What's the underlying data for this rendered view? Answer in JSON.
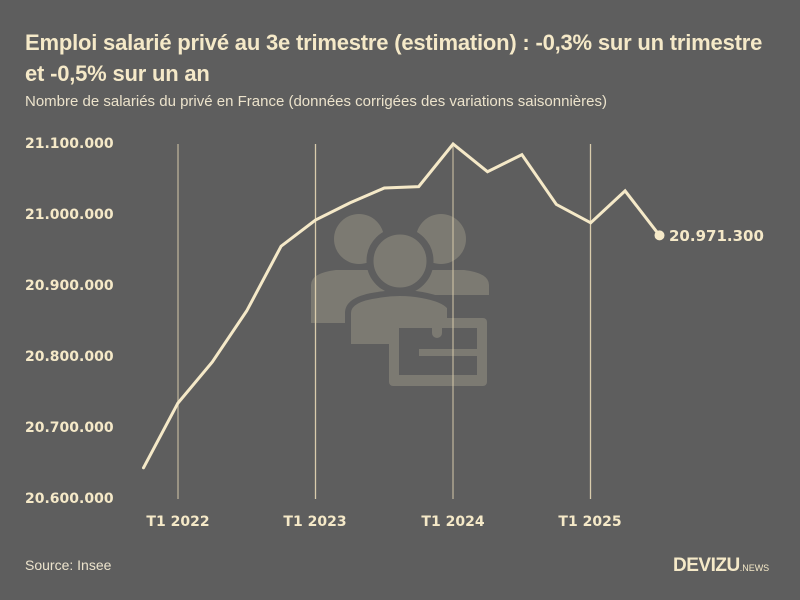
{
  "header": {
    "title": "Emploi salarié privé au 3e trimestre (estimation) : -0,3% sur un trimestre et -0,5% sur un an",
    "subtitle": "Nombre de salariés du privé en France (données corrigées des variations saisonnières)"
  },
  "yaxis": {
    "ticks": [
      "21.100.000",
      "21.000.000",
      "20.900.000",
      "20.800.000",
      "20.700.000",
      "20.600.000"
    ]
  },
  "xaxis": {
    "ticks": [
      "T1 2022",
      "T1 2023",
      "T1 2024",
      "T1 2025"
    ]
  },
  "end_label": "20.971.300",
  "footer": {
    "source": "Source: Insee",
    "logo_brand": "DEVIZU",
    "logo_suffix": ".NEWS"
  },
  "watermark_icon": "group-briefcase-icon",
  "colors": {
    "background": "#5e5e5e",
    "line": "#f5e9c8",
    "gridline": "#d9ccac",
    "watermark": "#7c7a72"
  },
  "chart_data": {
    "type": "line",
    "title": "Emploi salarié privé au 3e trimestre (estimation) : -0,3% sur un trimestre et -0,5% sur un an",
    "subtitle": "Nombre de salariés du privé en France (données corrigées des variations saisonnières)",
    "xlabel": "",
    "ylabel": "",
    "x": [
      "T4 2021",
      "T1 2022",
      "T2 2022",
      "T3 2022",
      "T4 2022",
      "T1 2023",
      "T2 2023",
      "T3 2023",
      "T4 2023",
      "T1 2024",
      "T2 2024",
      "T3 2024",
      "T4 2024",
      "T1 2025",
      "T2 2025",
      "T3 2025"
    ],
    "series": [
      {
        "name": "Salariés du privé",
        "values": [
          20644000,
          20735000,
          20793000,
          20865000,
          20956000,
          20993000,
          21017000,
          21038000,
          21040000,
          21100000,
          21061000,
          21085000,
          21015000,
          20989000,
          21034000,
          20971300
        ]
      }
    ],
    "ylim": [
      20600000,
      21100000
    ],
    "yticks": [
      20600000,
      20700000,
      20800000,
      20900000,
      21000000,
      21100000
    ],
    "xtick_labels": [
      "T1 2022",
      "T1 2023",
      "T1 2024",
      "T1 2025"
    ],
    "annotations": [
      {
        "x": "T3 2025",
        "text": "20.971.300"
      }
    ],
    "grid": "vertical lines at T1 of each year",
    "legend": "none",
    "source": "Source: Insee"
  }
}
